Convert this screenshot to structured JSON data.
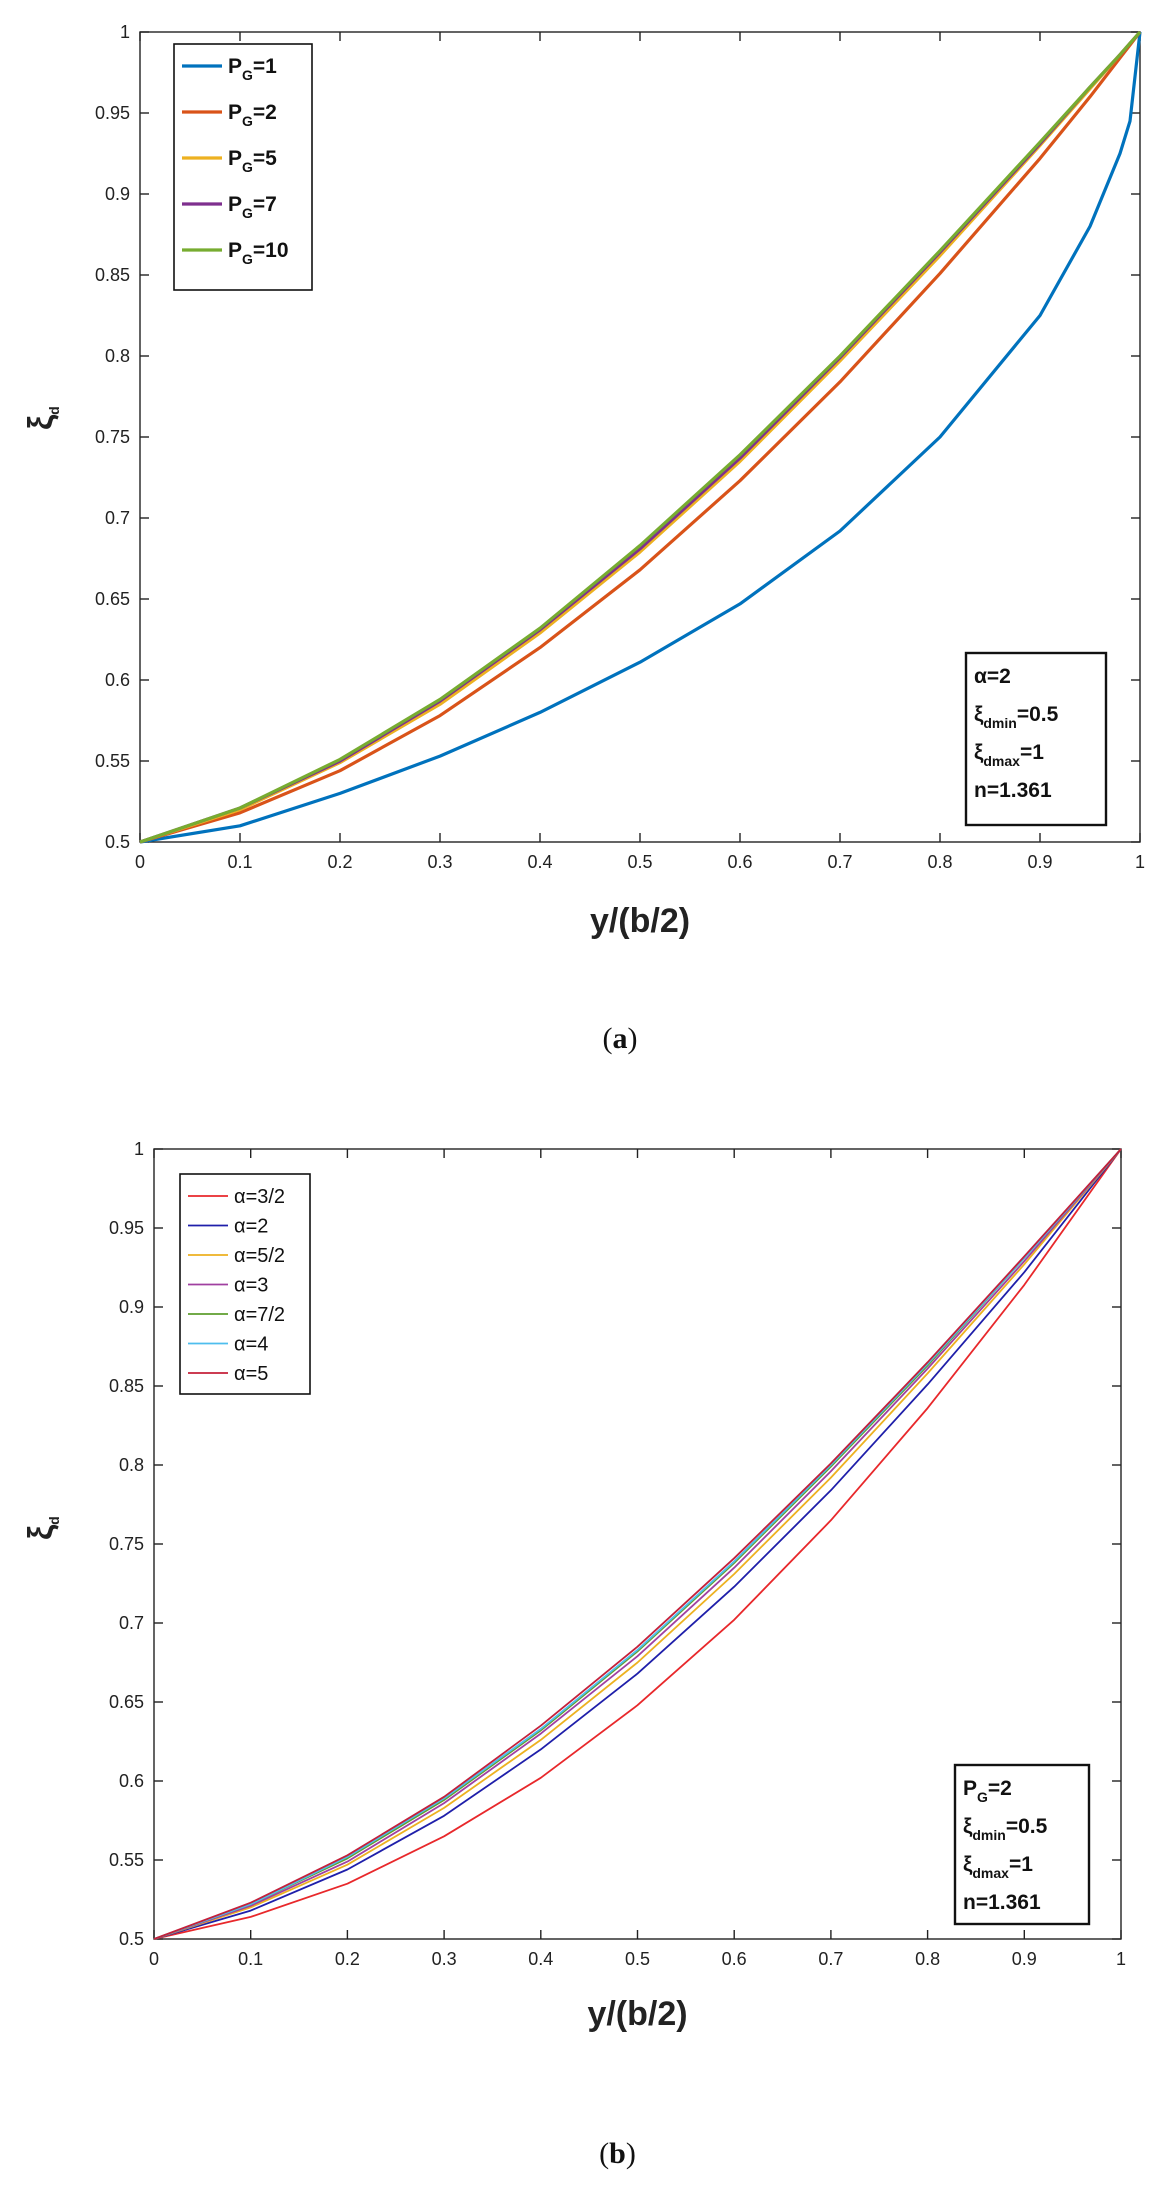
{
  "chart_data": [
    {
      "panel": "a",
      "caption": {
        "open": "(",
        "letter": "a",
        "close": ")"
      },
      "type": "line",
      "xlabel": "y/(b/2)",
      "ylabel": {
        "main": "ξ",
        "sub": "d"
      },
      "xlim": [
        0,
        1
      ],
      "ylim": [
        0.5,
        1
      ],
      "xticks": [
        "0",
        "0.1",
        "0.2",
        "0.3",
        "0.4",
        "0.5",
        "0.6",
        "0.7",
        "0.8",
        "0.9",
        "1"
      ],
      "yticks": [
        "0.5",
        "0.55",
        "0.6",
        "0.65",
        "0.7",
        "0.75",
        "0.8",
        "0.85",
        "0.9",
        "0.95",
        "1"
      ],
      "x": [
        0,
        0.1,
        0.2,
        0.3,
        0.4,
        0.5,
        0.6,
        0.7,
        0.8,
        0.9,
        0.95,
        0.98,
        0.99,
        1
      ],
      "series": [
        {
          "label": {
            "main": "P",
            "sub": "G",
            "rest": "=1"
          },
          "color": "#0072BD",
          "values": [
            0.5,
            0.51,
            0.53,
            0.553,
            0.58,
            0.611,
            0.647,
            0.692,
            0.75,
            0.825,
            0.88,
            0.925,
            0.945,
            1.0
          ]
        },
        {
          "label": {
            "main": "P",
            "sub": "G",
            "rest": "=2"
          },
          "color": "#D95319",
          "values": [
            0.5,
            0.518,
            0.544,
            0.578,
            0.62,
            0.668,
            0.723,
            0.784,
            0.851,
            0.922,
            0.96,
            0.984,
            0.992,
            1.0
          ]
        },
        {
          "label": {
            "main": "P",
            "sub": "G",
            "rest": "=5"
          },
          "color": "#EDB120",
          "values": [
            0.5,
            0.52,
            0.549,
            0.585,
            0.629,
            0.679,
            0.735,
            0.797,
            0.862,
            0.93,
            0.965,
            0.986,
            0.993,
            1.0
          ]
        },
        {
          "label": {
            "main": "P",
            "sub": "G",
            "rest": "=7"
          },
          "color": "#7E2F8E",
          "values": [
            0.5,
            0.521,
            0.55,
            0.587,
            0.631,
            0.681,
            0.737,
            0.799,
            0.864,
            0.931,
            0.966,
            0.986,
            0.993,
            1.0
          ]
        },
        {
          "label": {
            "main": "P",
            "sub": "G",
            "rest": "=10"
          },
          "color": "#77AC30",
          "values": [
            0.5,
            0.521,
            0.551,
            0.588,
            0.632,
            0.683,
            0.739,
            0.8,
            0.865,
            0.932,
            0.966,
            0.986,
            0.993,
            1.0
          ]
        }
      ],
      "annotation": [
        {
          "main": "α=2"
        },
        {
          "main": "ξ",
          "sub": "dmin",
          "rest": "=0.5"
        },
        {
          "main": "ξ",
          "sub": "dmax",
          "rest": "=1"
        },
        {
          "main": "n=1.361"
        }
      ],
      "legend_position": "top-left",
      "annotation_position": "bottom-right",
      "grid": false
    },
    {
      "panel": "b",
      "caption": {
        "open": "(",
        "letter": "b",
        "close": ")"
      },
      "type": "line",
      "xlabel": "y/(b/2)",
      "ylabel": {
        "main": "ξ",
        "sub": "d"
      },
      "xlim": [
        0,
        1
      ],
      "ylim": [
        0.5,
        1
      ],
      "xticks": [
        "0",
        "0.1",
        "0.2",
        "0.3",
        "0.4",
        "0.5",
        "0.6",
        "0.7",
        "0.8",
        "0.9",
        "1"
      ],
      "yticks": [
        "0.5",
        "0.55",
        "0.6",
        "0.65",
        "0.7",
        "0.75",
        "0.8",
        "0.85",
        "0.9",
        "0.95",
        "1"
      ],
      "x": [
        0,
        0.1,
        0.2,
        0.3,
        0.4,
        0.5,
        0.6,
        0.7,
        0.8,
        0.9,
        1
      ],
      "series": [
        {
          "label": {
            "main": "α=3/2"
          },
          "color": "#E8282B",
          "values": [
            0.5,
            0.514,
            0.535,
            0.565,
            0.602,
            0.648,
            0.702,
            0.765,
            0.836,
            0.914,
            1.0
          ]
        },
        {
          "label": {
            "main": "α=2"
          },
          "color": "#1F1FAA",
          "values": [
            0.5,
            0.518,
            0.544,
            0.578,
            0.62,
            0.668,
            0.723,
            0.784,
            0.851,
            0.922,
            1.0
          ]
        },
        {
          "label": {
            "main": "α=5/2"
          },
          "color": "#EDB120",
          "values": [
            0.5,
            0.52,
            0.547,
            0.583,
            0.626,
            0.675,
            0.731,
            0.792,
            0.858,
            0.927,
            1.0
          ]
        },
        {
          "label": {
            "main": "α=3"
          },
          "color": "#A040A0",
          "values": [
            0.5,
            0.521,
            0.549,
            0.586,
            0.63,
            0.679,
            0.735,
            0.796,
            0.861,
            0.929,
            1.0
          ]
        },
        {
          "label": {
            "main": "α=7/2"
          },
          "color": "#5E9E2E",
          "values": [
            0.5,
            0.522,
            0.551,
            0.588,
            0.632,
            0.682,
            0.738,
            0.799,
            0.863,
            0.931,
            1.0
          ]
        },
        {
          "label": {
            "main": "α=4"
          },
          "color": "#4DBEEE",
          "values": [
            0.5,
            0.522,
            0.552,
            0.589,
            0.633,
            0.683,
            0.739,
            0.8,
            0.864,
            0.931,
            1.0
          ]
        },
        {
          "label": {
            "main": "α=5"
          },
          "color": "#C4203A",
          "values": [
            0.5,
            0.523,
            0.553,
            0.59,
            0.635,
            0.685,
            0.741,
            0.801,
            0.865,
            0.932,
            1.0
          ]
        }
      ],
      "annotation": [
        {
          "main": "P",
          "sub": "G",
          "rest": "=2"
        },
        {
          "main": "ξ",
          "sub": "dmin",
          "rest": "=0.5"
        },
        {
          "main": "ξ",
          "sub": "dmax",
          "rest": "=1"
        },
        {
          "main": "n=1.361"
        }
      ],
      "legend_position": "top-left",
      "annotation_position": "bottom-right",
      "grid": false
    }
  ]
}
